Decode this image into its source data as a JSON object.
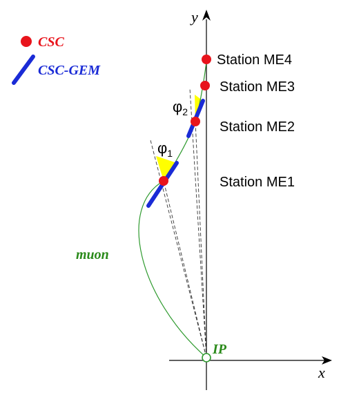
{
  "legend": {
    "csc_label": "CSC",
    "csc_gem_label": "CSC-GEM"
  },
  "axes": {
    "x_label": "x",
    "y_label": "y"
  },
  "stations": [
    {
      "label": "Station ME4"
    },
    {
      "label": "Station ME3"
    },
    {
      "label": "Station ME2"
    },
    {
      "label": "Station ME1"
    }
  ],
  "angles": {
    "phi1_label": "φ",
    "phi1_subscript": "1",
    "phi2_label": "φ",
    "phi2_subscript": "2"
  },
  "track": {
    "muon_label": "muon",
    "ip_label": "IP"
  },
  "colors": {
    "csc": "#e8141c",
    "csc_gem": "#1a2bd6",
    "track": "#2e9a2e",
    "muon_text": "#2a8a1a",
    "angle_fill": "#ffff00",
    "axis": "#000000"
  }
}
